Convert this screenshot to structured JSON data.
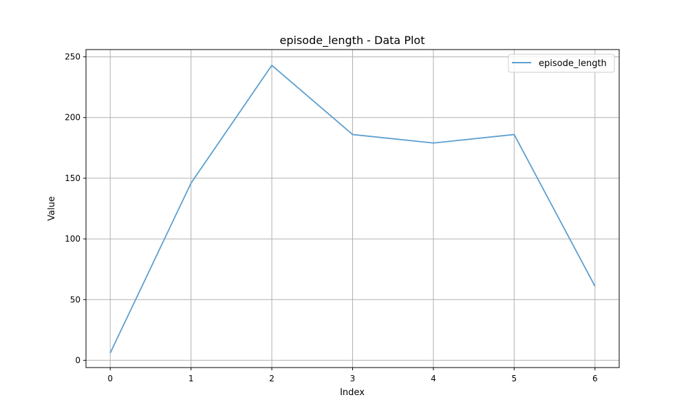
{
  "chart_data": {
    "type": "line",
    "title": "episode_length - Data Plot",
    "xlabel": "Index",
    "ylabel": "Value",
    "x": [
      0,
      1,
      2,
      3,
      4,
      5,
      6
    ],
    "series": [
      {
        "name": "episode_length",
        "values": [
          6,
          146,
          243,
          186,
          179,
          186,
          61
        ],
        "color": "#5b9ecf"
      }
    ],
    "xlim": [
      -0.3,
      6.3
    ],
    "ylim": [
      -6,
      256
    ],
    "xticks": [
      0,
      1,
      2,
      3,
      4,
      5,
      6
    ],
    "yticks": [
      0,
      50,
      100,
      150,
      200,
      250
    ],
    "grid": true,
    "legend": "top-right"
  }
}
